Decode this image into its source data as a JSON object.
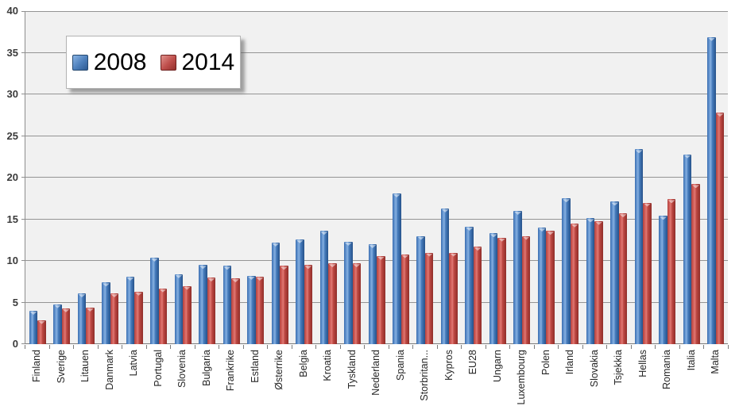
{
  "chart_data": {
    "type": "bar",
    "title": "",
    "categories": [
      "Finland",
      "Sverige",
      "Litauen",
      "Danmark",
      "Latvia",
      "Portugal",
      "Slovenia",
      "Bulgaria",
      "Frankrike",
      "Estland",
      "Østerrike",
      "Belgia",
      "Kroatia",
      "Tyskland",
      "Nederland",
      "Spania",
      "Storbritan...",
      "Kypros",
      "EU28",
      "Ungarn",
      "Luxembourg",
      "Polen",
      "Irland",
      "Slovakia",
      "Tsjekkia",
      "Hellas",
      "Romania",
      "Italia",
      "Malta"
    ],
    "series": [
      {
        "name": "2008",
        "color": "#4f81bd",
        "values": [
          4.0,
          4.8,
          6.1,
          7.4,
          8.1,
          10.4,
          8.4,
          9.5,
          9.4,
          8.2,
          12.2,
          12.6,
          13.6,
          12.3,
          12.0,
          18.1,
          13.0,
          16.3,
          14.1,
          13.3,
          16.0,
          14.0,
          17.5,
          15.1,
          17.1,
          23.4,
          15.4,
          22.8,
          36.9
        ]
      },
      {
        "name": "2014",
        "color": "#c0504d",
        "values": [
          2.9,
          4.3,
          4.4,
          6.1,
          6.3,
          6.7,
          7.0,
          8.0,
          7.9,
          8.1,
          9.4,
          9.5,
          9.7,
          9.7,
          10.6,
          10.8,
          11.0,
          11.0,
          11.7,
          12.8,
          13.0,
          13.6,
          14.5,
          14.8,
          15.7,
          17.0,
          17.4,
          19.2,
          27.8
        ]
      }
    ],
    "xlabel": "",
    "ylabel": "",
    "ylim": [
      0,
      40
    ],
    "yticks": [
      0,
      5,
      10,
      15,
      20,
      25,
      30,
      35,
      40
    ],
    "grid": "horizontal",
    "legend_position": "inside-top-left",
    "plot_background": "#f1f1f1",
    "gridline_color": "#949494"
  }
}
